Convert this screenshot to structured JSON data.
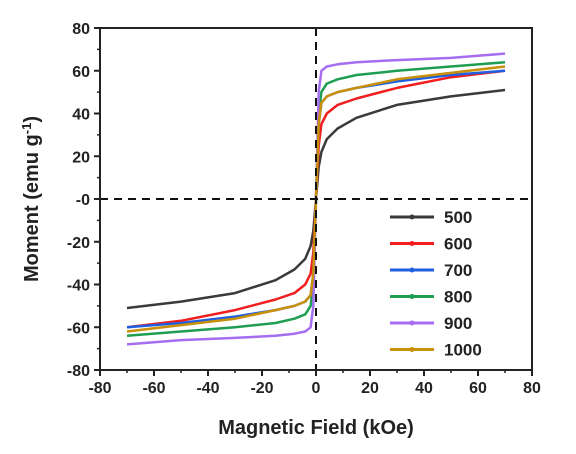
{
  "chart_data": {
    "type": "line",
    "title": "",
    "xlabel": "Magnetic Field (kOe)",
    "ylabel_main": "Moment (emu g",
    "ylabel_sup": "-1",
    "ylabel_end": ")",
    "xlim": [
      -80,
      80
    ],
    "ylim": [
      -80,
      80
    ],
    "x_ticks": [
      -80,
      -60,
      -40,
      -20,
      0,
      20,
      40,
      60,
      80
    ],
    "x_tick_labels": [
      "-80",
      "-60",
      "-40",
      "-20",
      "0",
      "20",
      "40",
      "60",
      "80"
    ],
    "y_ticks": [
      -80,
      -60,
      -40,
      -20,
      0,
      20,
      40,
      60,
      80
    ],
    "y_tick_labels": [
      "-80",
      "-60",
      "-40",
      "-20",
      "-0",
      "20",
      "40",
      "60",
      "80"
    ],
    "grid": false,
    "reference_lines": [
      "dashed horizontal line at y=0",
      "dashed vertical line at x=0"
    ],
    "legend_position": "lower-right",
    "series": [
      {
        "name": "500",
        "color": "#3a3a3a",
        "x": [
          -70,
          -50,
          -30,
          -15,
          -8,
          -4,
          -2,
          -1,
          0,
          1,
          2,
          4,
          8,
          15,
          30,
          50,
          70
        ],
        "y": [
          -51,
          -48,
          -44,
          -38,
          -33,
          -28,
          -22,
          -15,
          0,
          15,
          22,
          28,
          33,
          38,
          44,
          48,
          51
        ]
      },
      {
        "name": "600",
        "color": "#f01e1e",
        "x": [
          -70,
          -50,
          -30,
          -15,
          -8,
          -4,
          -2,
          -1,
          0,
          1,
          2,
          4,
          8,
          15,
          30,
          50,
          70
        ],
        "y": [
          -60,
          -57,
          -52,
          -47,
          -44,
          -40,
          -35,
          -25,
          0,
          25,
          35,
          40,
          44,
          47,
          52,
          57,
          60
        ]
      },
      {
        "name": "700",
        "color": "#1f5fe0",
        "x": [
          -70,
          -50,
          -30,
          -15,
          -8,
          -4,
          -2,
          -1,
          0,
          1,
          2,
          4,
          8,
          15,
          30,
          50,
          70
        ],
        "y": [
          -60,
          -58,
          -55,
          -52,
          -50,
          -48,
          -45,
          -35,
          0,
          35,
          45,
          48,
          50,
          52,
          55,
          58,
          60
        ]
      },
      {
        "name": "800",
        "color": "#1e9e50",
        "x": [
          -70,
          -50,
          -30,
          -15,
          -8,
          -4,
          -2,
          -1,
          0,
          1,
          2,
          4,
          8,
          15,
          30,
          50,
          70
        ],
        "y": [
          -64,
          -62,
          -60,
          -58,
          -56,
          -54,
          -50,
          -40,
          0,
          40,
          50,
          54,
          56,
          58,
          60,
          62,
          64
        ]
      },
      {
        "name": "900",
        "color": "#a66df0",
        "x": [
          -70,
          -50,
          -30,
          -15,
          -8,
          -4,
          -2,
          -1,
          0,
          1,
          2,
          4,
          8,
          15,
          30,
          50,
          70
        ],
        "y": [
          -68,
          -66,
          -65,
          -64,
          -63,
          -62,
          -60,
          -50,
          0,
          50,
          60,
          62,
          63,
          64,
          65,
          66,
          68
        ]
      },
      {
        "name": "1000",
        "color": "#c9900a",
        "x": [
          -70,
          -50,
          -30,
          -15,
          -8,
          -4,
          -2,
          -1,
          0,
          1,
          2,
          4,
          8,
          15,
          30,
          50,
          70
        ],
        "y": [
          -62,
          -59,
          -56,
          -52,
          -50,
          -48,
          -45,
          -35,
          0,
          35,
          45,
          48,
          50,
          52,
          56,
          59,
          62
        ]
      }
    ]
  }
}
